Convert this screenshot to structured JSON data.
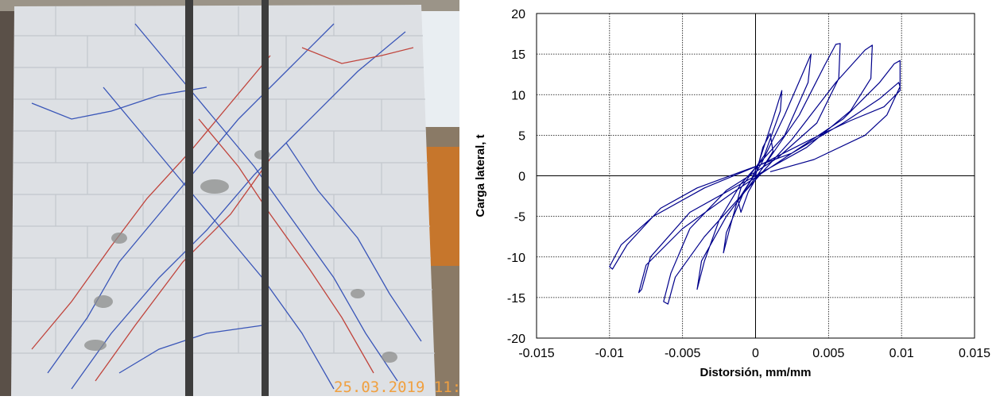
{
  "photo": {
    "date_stamp": "25.03.2019 11:"
  },
  "chart_data": {
    "type": "line",
    "title": "",
    "xlabel": "Distorsión, mm/mm",
    "ylabel": "Carga lateral, t",
    "xlim": [
      -0.015,
      0.015
    ],
    "ylim": [
      -20,
      20
    ],
    "xticks": [
      -0.015,
      -0.01,
      -0.005,
      0,
      0.005,
      0.01,
      0.015
    ],
    "xtick_labels": [
      "-0.015",
      "-0.01",
      "-0.005",
      "0",
      "0.005",
      "0.01",
      "0.015"
    ],
    "yticks": [
      20,
      15,
      10,
      5,
      0,
      -5,
      -10,
      -15,
      -20
    ],
    "ytick_labels": [
      "20",
      "15",
      "10",
      "5",
      "0",
      "-5",
      "-10",
      "-15",
      "-20"
    ],
    "grid": true,
    "line_color": "#00008b",
    "series": [
      {
        "values": [
          [
            0,
            0
          ],
          [
            0.0005,
            3.5
          ],
          [
            0.001,
            5.2
          ],
          [
            0.0012,
            3.0
          ],
          [
            0.0003,
            0.5
          ],
          [
            -0.0005,
            -2.0
          ],
          [
            -0.001,
            -4.5
          ],
          [
            -0.0012,
            -3.0
          ],
          [
            -0.0003,
            -0.5
          ],
          [
            0.0002,
            1.5
          ],
          [
            0.0012,
            7.0
          ],
          [
            0.0018,
            10.5
          ],
          [
            0.0017,
            8.0
          ],
          [
            0.0006,
            2.5
          ],
          [
            -0.001,
            -1.5
          ],
          [
            -0.0017,
            -6.0
          ],
          [
            -0.0022,
            -9.5
          ],
          [
            -0.002,
            -7.0
          ],
          [
            -0.0008,
            -2.0
          ],
          [
            0.0004,
            1.5
          ],
          [
            0.002,
            7.5
          ],
          [
            0.0032,
            12.5
          ],
          [
            0.0038,
            15.0
          ],
          [
            0.0036,
            11.5
          ],
          [
            0.002,
            5.0
          ],
          [
            -0.001,
            -1.0
          ],
          [
            -0.0025,
            -5.5
          ],
          [
            -0.0035,
            -10.5
          ],
          [
            -0.004,
            -14.0
          ],
          [
            -0.0037,
            -10.5
          ],
          [
            -0.002,
            -5.0
          ],
          [
            0.0005,
            1.0
          ],
          [
            0.003,
            7.5
          ],
          [
            0.0047,
            13.5
          ],
          [
            0.0055,
            16.2
          ],
          [
            0.0058,
            16.3
          ],
          [
            0.0057,
            12.0
          ],
          [
            0.0042,
            6.5
          ],
          [
            0.0015,
            2.2
          ],
          [
            -0.002,
            -1.8
          ],
          [
            -0.0045,
            -6.5
          ],
          [
            -0.0058,
            -12.0
          ],
          [
            -0.0063,
            -15.5
          ],
          [
            -0.006,
            -15.8
          ],
          [
            -0.0055,
            -12.5
          ],
          [
            -0.0035,
            -7.5
          ],
          [
            -0.0005,
            -1.5
          ],
          [
            0.0025,
            4.5
          ],
          [
            0.0055,
            11.5
          ],
          [
            0.0075,
            15.5
          ],
          [
            0.008,
            16.1
          ],
          [
            0.0079,
            12.0
          ],
          [
            0.0065,
            8.0
          ],
          [
            0.0035,
            3.5
          ],
          [
            -0.0005,
            -0.5
          ],
          [
            -0.0045,
            -4.5
          ],
          [
            -0.0072,
            -10.0
          ],
          [
            -0.0078,
            -14.0
          ],
          [
            -0.008,
            -14.4
          ],
          [
            -0.0075,
            -11.0
          ],
          [
            -0.005,
            -6.5
          ],
          [
            -0.0015,
            -2.0
          ],
          [
            0.002,
            2.2
          ],
          [
            0.006,
            7.0
          ],
          [
            0.0085,
            11.5
          ],
          [
            0.0095,
            13.8
          ],
          [
            0.0099,
            14.2
          ],
          [
            0.0099,
            10.5
          ],
          [
            0.0088,
            8.5
          ],
          [
            0.0065,
            6.8
          ],
          [
            0.0038,
            4.5
          ],
          [
            0.0005,
            1.5
          ],
          [
            -0.0035,
            -1.5
          ],
          [
            -0.007,
            -5.0
          ],
          [
            -0.0092,
            -8.5
          ],
          [
            -0.01,
            -11.2
          ],
          [
            -0.0098,
            -11.5
          ],
          [
            -0.0088,
            -8.5
          ],
          [
            -0.0065,
            -4.0
          ],
          [
            -0.004,
            -1.5
          ],
          [
            -0.001,
            0.5
          ],
          [
            0.0025,
            2.8
          ],
          [
            0.006,
            6.5
          ],
          [
            0.0085,
            9.5
          ],
          [
            0.0098,
            11.5
          ],
          [
            0.0099,
            11.0
          ],
          [
            0.009,
            7.5
          ],
          [
            0.0075,
            5.0
          ],
          [
            0.004,
            2.0
          ],
          [
            0.001,
            0.5
          ]
        ]
      }
    ]
  }
}
